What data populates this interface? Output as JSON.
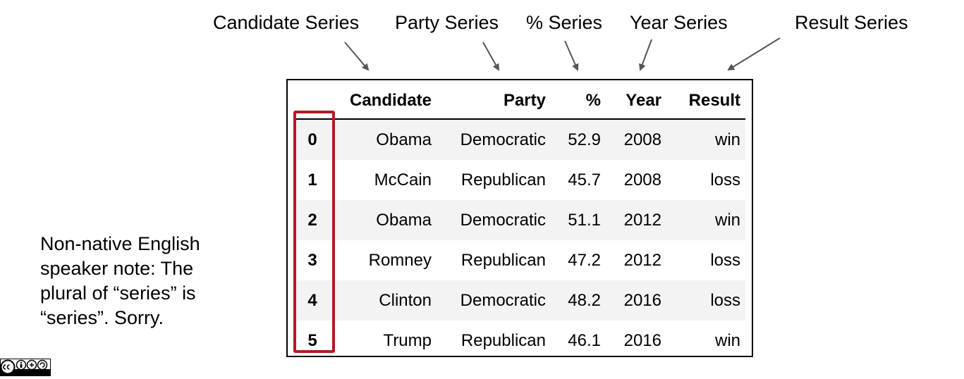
{
  "series_labels": {
    "candidate": "Candidate Series",
    "party": "Party Series",
    "percent": "% Series",
    "year": "Year Series",
    "result": "Result Series"
  },
  "table": {
    "columns": [
      "Candidate",
      "Party",
      "%",
      "Year",
      "Result"
    ],
    "rows": [
      {
        "index": "0",
        "candidate": "Obama",
        "party": "Democratic",
        "percent": "52.9",
        "year": "2008",
        "result": "win"
      },
      {
        "index": "1",
        "candidate": "McCain",
        "party": "Republican",
        "percent": "45.7",
        "year": "2008",
        "result": "loss"
      },
      {
        "index": "2",
        "candidate": "Obama",
        "party": "Democratic",
        "percent": "51.1",
        "year": "2012",
        "result": "win"
      },
      {
        "index": "3",
        "candidate": "Romney",
        "party": "Republican",
        "percent": "47.2",
        "year": "2012",
        "result": "loss"
      },
      {
        "index": "4",
        "candidate": "Clinton",
        "party": "Democratic",
        "percent": "48.2",
        "year": "2016",
        "result": "loss"
      },
      {
        "index": "5",
        "candidate": "Trump",
        "party": "Republican",
        "percent": "46.1",
        "year": "2016",
        "result": "win"
      }
    ]
  },
  "note": {
    "lines": [
      "Non-native English",
      "speaker note: The",
      "plural of “series” is",
      "“series”. Sorry."
    ]
  },
  "colors": {
    "index_highlight": "#b01c24",
    "arrow": "#555555",
    "row_stripe": "#f3f3f3"
  },
  "license_badge": {
    "icon": "cc-by-nc-sa-icon"
  }
}
